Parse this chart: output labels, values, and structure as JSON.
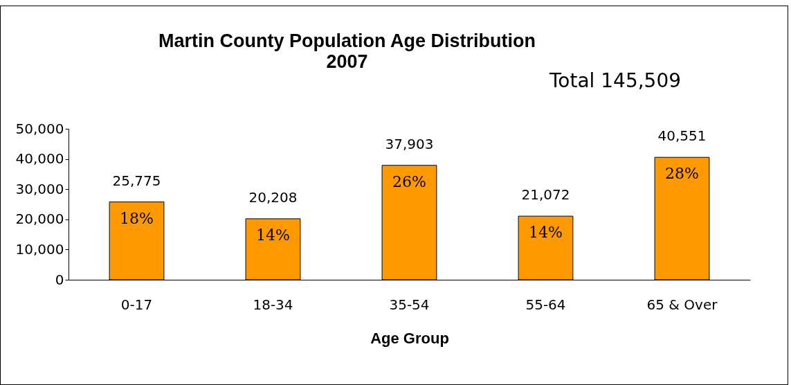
{
  "chart_data": {
    "type": "bar",
    "title": "Martin County Population Age Distribution",
    "subtitle": "2007",
    "xlabel": "Age Group",
    "categories": [
      "0-17",
      "18-34",
      "35-54",
      "55-64",
      "65 & Over"
    ],
    "values": [
      25775,
      20208,
      37903,
      21072,
      40551
    ],
    "value_labels": [
      "25,775",
      "20,208",
      "37,903",
      "21,072",
      "40,551"
    ],
    "color": "#ff9900",
    "ylim": [
      0,
      50000
    ],
    "yticks": [
      0,
      {
        "value": 10000,
        "label": "10,000"
      },
      {
        "value": 20000,
        "label": "20,000"
      },
      {
        "value": 30000,
        "label": "30,000"
      },
      {
        "value": 40000,
        "label": "40,000"
      },
      {
        "value": 50000,
        "label": "50,000"
      }
    ],
    "grid": false,
    "annotations": [
      "Total 145,509",
      {
        "text": "18%",
        "x": "0-17",
        "y": 25775
      },
      {
        "text": "14%",
        "x": "18-34",
        "y": 20208
      },
      {
        "text": "26%",
        "x": "35-54",
        "y": 37903
      },
      {
        "text": "14%",
        "x": "55-64",
        "y": 21072
      },
      {
        "text": "28%",
        "x": "65 & Over",
        "y": 40551
      }
    ]
  }
}
